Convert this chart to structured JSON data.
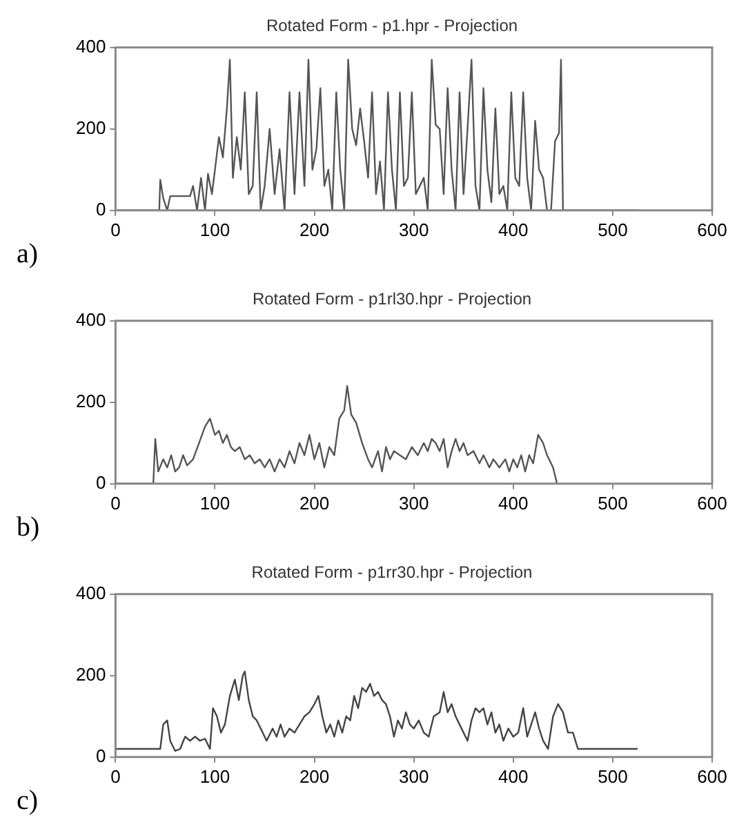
{
  "chart_data": [
    {
      "type": "line",
      "title": "Rotated Form - p1.hpr - Projection",
      "annotations": [
        "a)"
      ],
      "color": "#555555",
      "xlim": [
        0,
        600
      ],
      "xticks": [
        0,
        100,
        200,
        300,
        400,
        500,
        600
      ],
      "ylim": [
        0,
        400
      ],
      "yticks": [
        0,
        200,
        400
      ],
      "x": [
        0,
        44,
        45,
        48,
        52,
        55,
        75,
        78,
        82,
        86,
        90,
        93,
        97,
        100,
        104,
        108,
        112,
        115,
        118,
        122,
        126,
        130,
        134,
        138,
        142,
        146,
        150,
        155,
        160,
        165,
        170,
        175,
        180,
        185,
        190,
        194,
        198,
        202,
        206,
        210,
        214,
        218,
        222,
        226,
        230,
        234,
        238,
        242,
        246,
        250,
        254,
        258,
        262,
        266,
        270,
        274,
        278,
        282,
        286,
        290,
        294,
        298,
        302,
        306,
        310,
        314,
        318,
        322,
        326,
        330,
        334,
        338,
        342,
        346,
        350,
        354,
        358,
        362,
        366,
        370,
        374,
        378,
        382,
        386,
        390,
        394,
        398,
        402,
        406,
        410,
        414,
        418,
        422,
        426,
        430,
        434,
        438,
        442,
        446,
        448,
        450,
        525
      ],
      "values": [
        0,
        0,
        75,
        30,
        0,
        35,
        35,
        60,
        0,
        80,
        0,
        90,
        40,
        100,
        180,
        130,
        250,
        370,
        80,
        180,
        100,
        290,
        40,
        60,
        290,
        0,
        60,
        200,
        40,
        150,
        0,
        290,
        40,
        290,
        60,
        370,
        100,
        150,
        300,
        60,
        100,
        0,
        290,
        100,
        0,
        370,
        200,
        160,
        250,
        170,
        80,
        290,
        40,
        120,
        0,
        290,
        100,
        0,
        290,
        60,
        80,
        290,
        40,
        60,
        80,
        0,
        370,
        210,
        200,
        40,
        300,
        100,
        0,
        290,
        40,
        200,
        370,
        60,
        0,
        300,
        100,
        20,
        250,
        40,
        60,
        0,
        290,
        80,
        60,
        290,
        80,
        0,
        220,
        100,
        80,
        0,
        0,
        170,
        190,
        370,
        0,
        0
      ]
    },
    {
      "type": "line",
      "title": "Rotated Form - p1rl30.hpr - Projection",
      "annotations": [
        "b)"
      ],
      "color": "#555555",
      "xlim": [
        0,
        600
      ],
      "xticks": [
        0,
        100,
        200,
        300,
        400,
        500,
        600
      ],
      "ylim": [
        0,
        400
      ],
      "yticks": [
        0,
        200,
        400
      ],
      "x": [
        0,
        30,
        38,
        40,
        43,
        48,
        52,
        56,
        60,
        64,
        68,
        72,
        78,
        84,
        90,
        95,
        100,
        104,
        108,
        112,
        116,
        120,
        125,
        130,
        135,
        140,
        145,
        150,
        155,
        160,
        165,
        170,
        175,
        180,
        185,
        190,
        195,
        200,
        205,
        210,
        215,
        220,
        225,
        230,
        233,
        237,
        242,
        248,
        254,
        258,
        264,
        268,
        272,
        276,
        280,
        286,
        292,
        298,
        304,
        310,
        314,
        318,
        322,
        326,
        330,
        334,
        338,
        342,
        346,
        350,
        354,
        360,
        366,
        370,
        376,
        380,
        386,
        392,
        396,
        400,
        404,
        408,
        412,
        416,
        420,
        425,
        430,
        434,
        440,
        444
      ],
      "values": [
        0,
        0,
        0,
        110,
        30,
        60,
        40,
        70,
        30,
        40,
        70,
        45,
        60,
        100,
        140,
        160,
        120,
        130,
        100,
        120,
        90,
        80,
        90,
        60,
        70,
        50,
        60,
        40,
        60,
        30,
        60,
        40,
        80,
        50,
        100,
        70,
        120,
        60,
        100,
        40,
        90,
        70,
        160,
        180,
        240,
        170,
        150,
        100,
        60,
        40,
        80,
        30,
        90,
        60,
        80,
        70,
        60,
        90,
        70,
        100,
        80,
        110,
        100,
        80,
        110,
        40,
        80,
        110,
        80,
        100,
        70,
        80,
        50,
        70,
        40,
        60,
        40,
        60,
        30,
        60,
        40,
        70,
        30,
        70,
        50,
        120,
        100,
        70,
        40,
        0
      ]
    },
    {
      "type": "line",
      "title": "Rotated Form - p1rr30.hpr - Projection",
      "annotations": [
        "c)"
      ],
      "color": "#444444",
      "xlim": [
        0,
        600
      ],
      "xticks": [
        0,
        100,
        200,
        300,
        400,
        500,
        600
      ],
      "ylim": [
        0,
        400
      ],
      "yticks": [
        0,
        200,
        400
      ],
      "x": [
        0,
        45,
        48,
        52,
        55,
        60,
        65,
        70,
        75,
        80,
        85,
        90,
        95,
        98,
        102,
        106,
        110,
        115,
        120,
        124,
        128,
        130,
        134,
        138,
        142,
        148,
        152,
        158,
        162,
        166,
        170,
        175,
        180,
        185,
        190,
        195,
        200,
        204,
        208,
        212,
        216,
        220,
        224,
        228,
        232,
        236,
        240,
        244,
        248,
        252,
        256,
        260,
        264,
        268,
        272,
        276,
        280,
        284,
        288,
        292,
        296,
        300,
        305,
        310,
        315,
        320,
        326,
        330,
        334,
        338,
        342,
        346,
        350,
        354,
        358,
        362,
        366,
        370,
        374,
        378,
        382,
        386,
        390,
        395,
        400,
        405,
        410,
        414,
        418,
        422,
        426,
        430,
        435,
        440,
        445,
        450,
        455,
        460,
        465,
        470,
        525
      ],
      "values": [
        20,
        20,
        80,
        90,
        40,
        15,
        20,
        50,
        40,
        50,
        40,
        45,
        20,
        120,
        100,
        60,
        80,
        150,
        190,
        140,
        200,
        210,
        140,
        100,
        90,
        60,
        40,
        70,
        50,
        80,
        50,
        70,
        60,
        80,
        100,
        110,
        130,
        150,
        100,
        60,
        80,
        50,
        90,
        60,
        100,
        90,
        150,
        120,
        170,
        160,
        180,
        150,
        160,
        140,
        130,
        100,
        50,
        90,
        70,
        110,
        80,
        70,
        90,
        60,
        50,
        100,
        110,
        160,
        110,
        130,
        100,
        80,
        60,
        40,
        90,
        120,
        110,
        120,
        80,
        110,
        60,
        80,
        40,
        70,
        50,
        60,
        120,
        50,
        80,
        110,
        70,
        40,
        20,
        100,
        130,
        110,
        60,
        60,
        20,
        20,
        20
      ]
    }
  ]
}
